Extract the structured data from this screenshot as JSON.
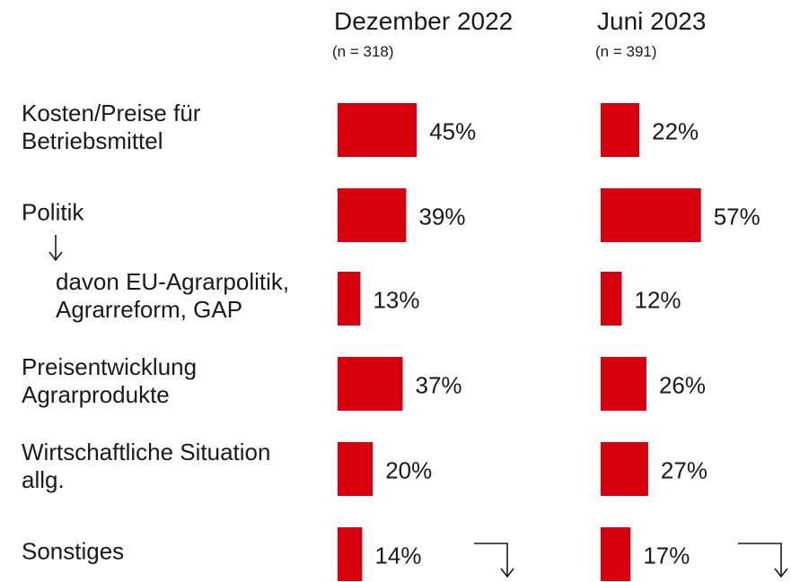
{
  "chart_data": {
    "type": "bar",
    "categories": [
      "Kosten/Preise für\nBetriebsmittel",
      "Politik",
      "davon EU-Agrarpolitik,\nAgrarreform, GAP",
      "Preisentwicklung\nAgrarprodukte",
      "Wirtschaftliche Situation\nallg.",
      "Sonstiges"
    ],
    "series": [
      {
        "name": "Dezember 2022",
        "subtitle": "(n = 318)",
        "color": "#d9000d",
        "values": [
          45,
          39,
          13,
          37,
          20,
          14
        ],
        "value_labels": [
          "45%",
          "39%",
          "13%",
          "37%",
          "20%",
          "14%"
        ]
      },
      {
        "name": "Juni 2023",
        "subtitle": "(n = 391)",
        "color": "#d9000d",
        "values": [
          22,
          57,
          12,
          26,
          27,
          17
        ],
        "value_labels": [
          "22%",
          "57%",
          "12%",
          "26%",
          "27%",
          "17%"
        ]
      }
    ]
  }
}
